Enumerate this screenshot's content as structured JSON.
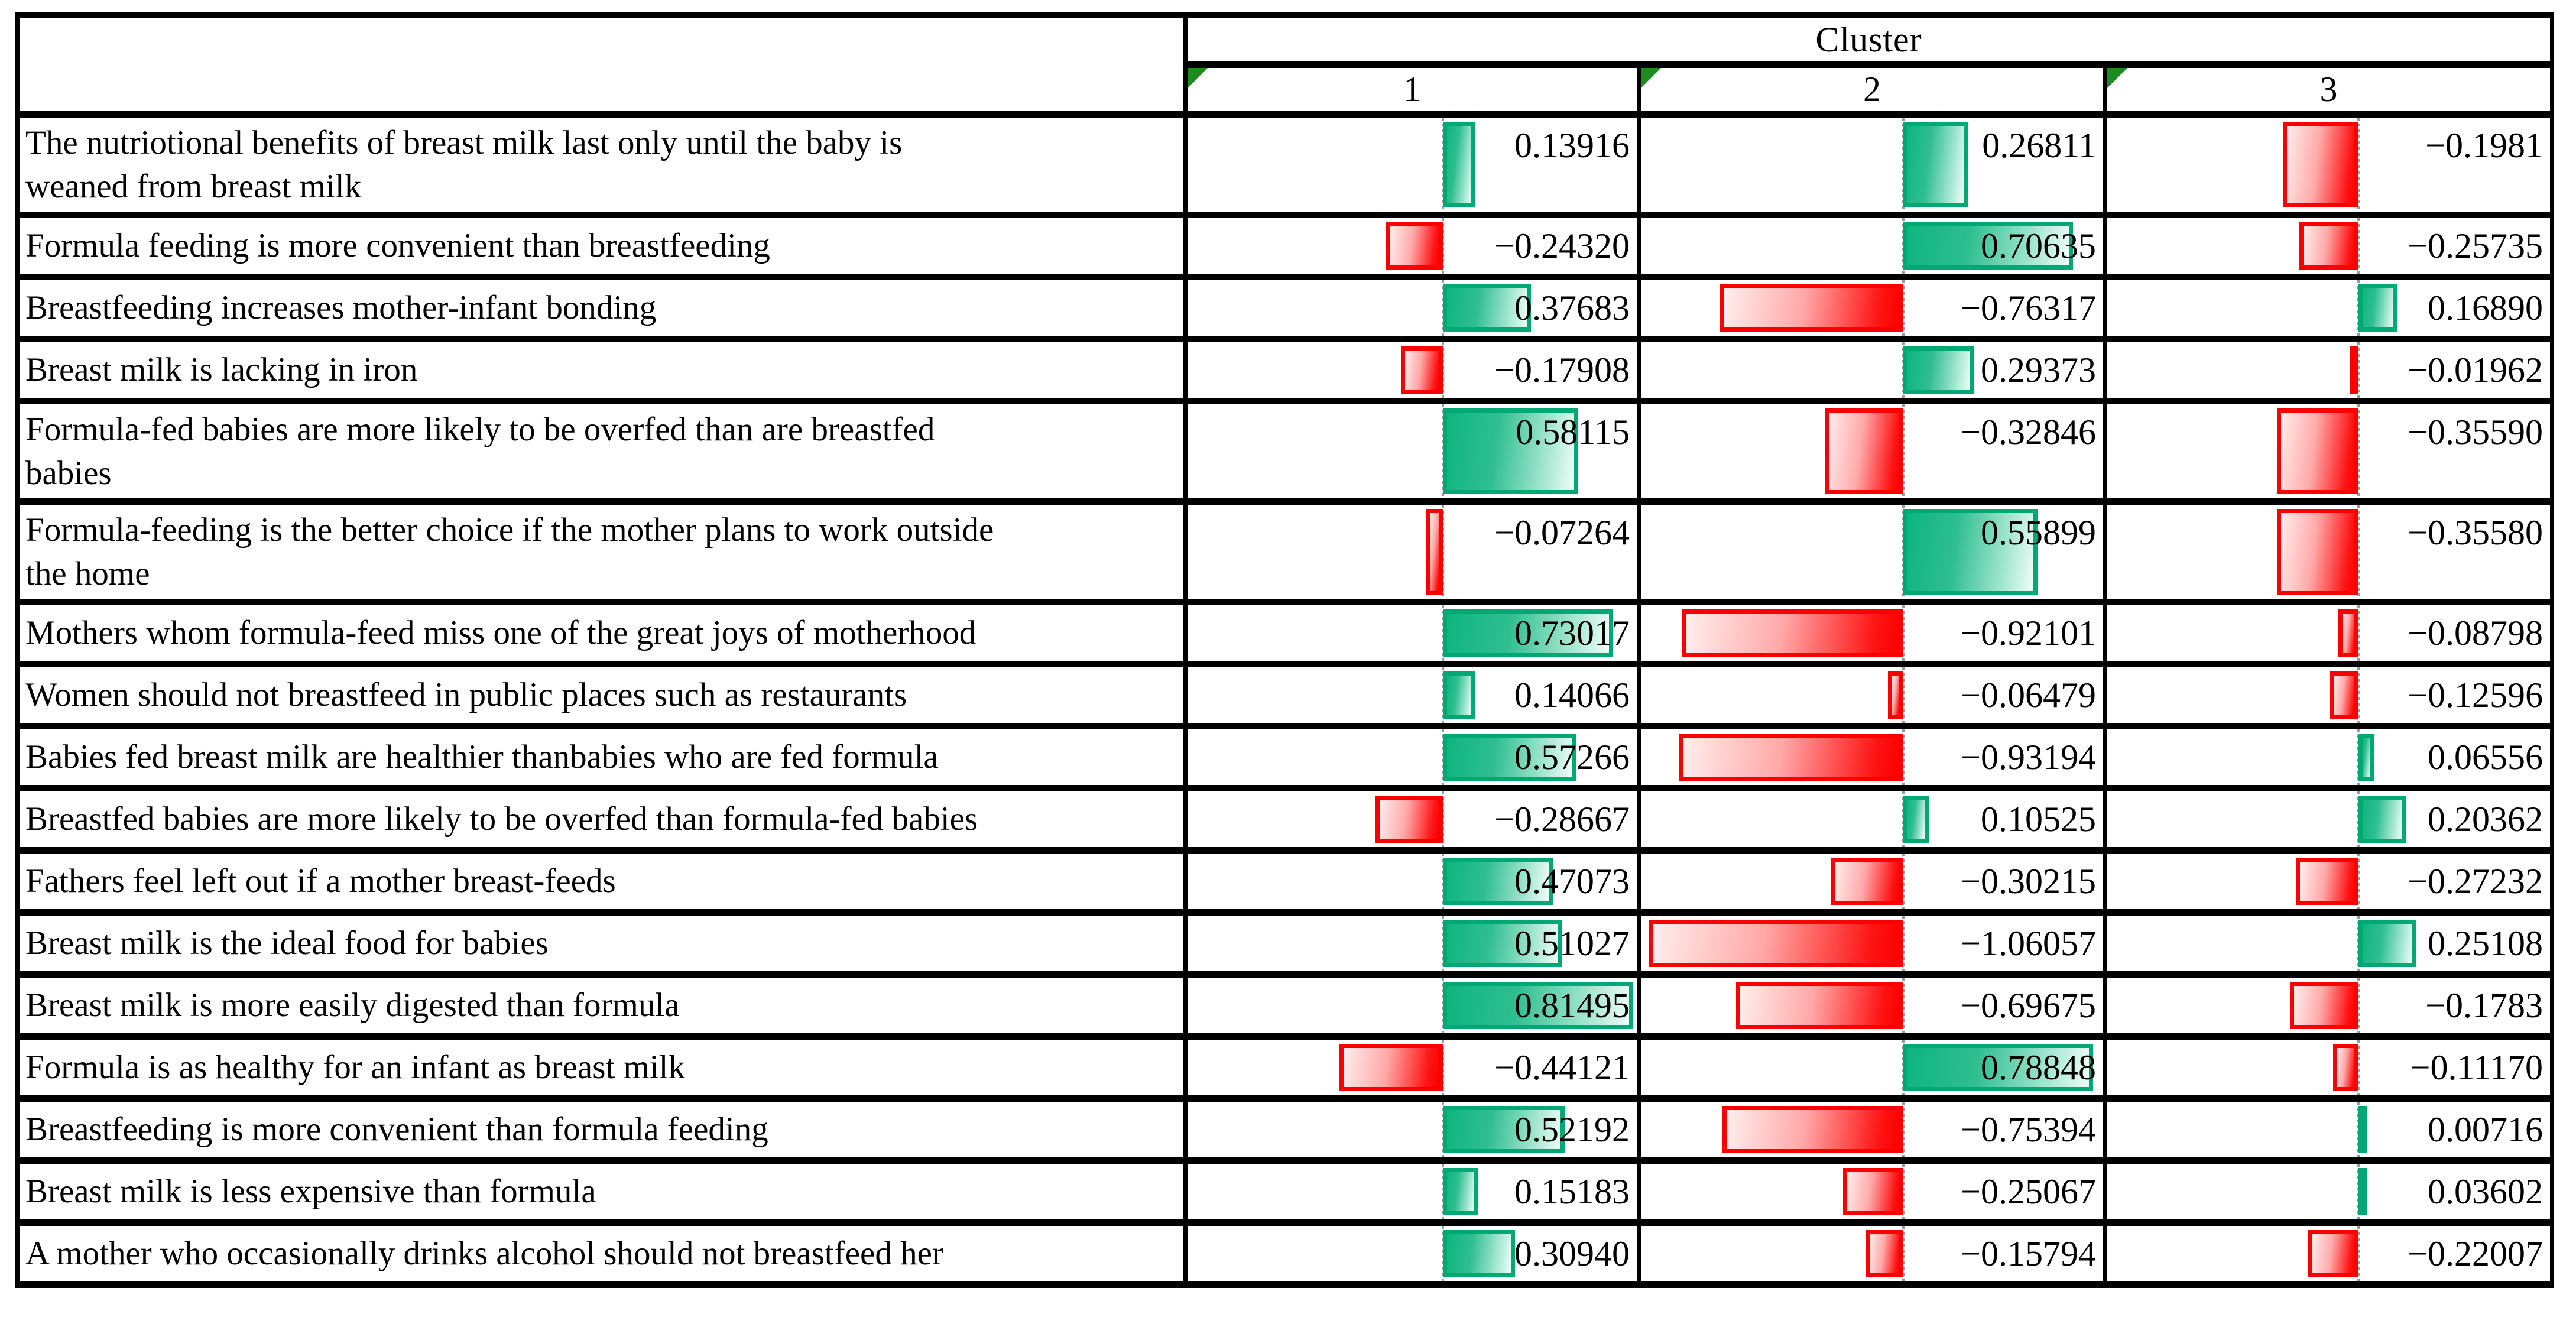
{
  "header": {
    "title": "Cluster",
    "columns": [
      "1",
      "2",
      "3"
    ]
  },
  "style": {
    "positive_color": "#0eb57f",
    "positive_border": "#00a873",
    "negative_color": "#fb0000",
    "negative_border": "#fb0000",
    "axis_line_color": "#9b9b9b",
    "corner_triangle_color": "#1e8b1e",
    "axis_percent": 56.8,
    "scale_percent_per_unit": 52
  },
  "chart_data": {
    "type": "table",
    "title": "Cluster",
    "columns": [
      "1",
      "2",
      "3"
    ],
    "legend": "green bars = positive cluster-center values, red bars = negative values, dotted line = zero axis",
    "rows": [
      {
        "statement_lines": [
          "The nutriotional benefits of breast milk last only until the baby is",
          "weaned from breast milk"
        ],
        "cells": [
          {
            "text": "0.13916",
            "value": 0.13916
          },
          {
            "text": "0.26811",
            "value": 0.26811
          },
          {
            "text": "−0.1981",
            "value": -0.1981,
            "bar": -0.33
          }
        ]
      },
      {
        "statement_lines": [
          "Formula feeding is more convenient than breastfeeding"
        ],
        "cells": [
          {
            "text": "−0.24320",
            "value": -0.2432
          },
          {
            "text": "0.70635",
            "value": 0.70635
          },
          {
            "text": "−0.25735",
            "value": -0.25735
          }
        ]
      },
      {
        "statement_lines": [
          "Breastfeeding increases mother-infant bonding"
        ],
        "cells": [
          {
            "text": "0.37683",
            "value": 0.37683
          },
          {
            "text": "−0.76317",
            "value": -0.76317
          },
          {
            "text": "0.16890",
            "value": 0.1689
          }
        ]
      },
      {
        "statement_lines": [
          "Breast milk is lacking in iron"
        ],
        "cells": [
          {
            "text": "−0.17908",
            "value": -0.17908
          },
          {
            "text": "0.29373",
            "value": 0.29373
          },
          {
            "text": "−0.01962",
            "value": -0.01962
          }
        ]
      },
      {
        "statement_lines": [
          "Formula-fed babies are more likely to be overfed than are breastfed",
          "babies"
        ],
        "cells": [
          {
            "text": "0.58115",
            "value": 0.58115
          },
          {
            "text": "−0.32846",
            "value": -0.32846
          },
          {
            "text": "−0.35590",
            "value": -0.3559
          }
        ]
      },
      {
        "statement_lines": [
          "Formula-feeding is the better choice if the mother plans to work outside",
          "the home"
        ],
        "cells": [
          {
            "text": "−0.07264",
            "value": -0.07264
          },
          {
            "text": "0.55899",
            "value": 0.55899
          },
          {
            "text": "−0.35580",
            "value": -0.3558
          }
        ]
      },
      {
        "statement_lines": [
          "Mothers whom formula-feed miss one of the great joys of motherhood"
        ],
        "cells": [
          {
            "text": "0.73017",
            "value": 0.73017
          },
          {
            "text": "−0.92101",
            "value": -0.92101
          },
          {
            "text": "−0.08798",
            "value": -0.08798
          }
        ]
      },
      {
        "statement_lines": [
          "Women should not breastfeed in public places such as restaurants"
        ],
        "cells": [
          {
            "text": "0.14066",
            "value": 0.14066
          },
          {
            "text": "−0.06479",
            "value": -0.06479
          },
          {
            "text": "−0.12596",
            "value": -0.12596
          }
        ]
      },
      {
        "statement_lines": [
          "Babies fed breast milk are healthier thanbabies who are fed formula"
        ],
        "cells": [
          {
            "text": "0.57266",
            "value": 0.57266
          },
          {
            "text": "−0.93194",
            "value": -0.93194
          },
          {
            "text": "0.06556",
            "value": 0.06556
          }
        ]
      },
      {
        "statement_lines": [
          "Breastfed babies are more likely to be overfed than formula-fed babies"
        ],
        "cells": [
          {
            "text": "−0.28667",
            "value": -0.28667
          },
          {
            "text": "0.10525",
            "value": 0.10525
          },
          {
            "text": "0.20362",
            "value": 0.20362
          }
        ]
      },
      {
        "statement_lines": [
          "Fathers feel left out if a mother breast-feeds"
        ],
        "cells": [
          {
            "text": "0.47073",
            "value": 0.47073
          },
          {
            "text": "−0.30215",
            "value": -0.30215
          },
          {
            "text": "−0.27232",
            "value": -0.27232
          }
        ]
      },
      {
        "statement_lines": [
          "Breast milk is the ideal food for babies"
        ],
        "cells": [
          {
            "text": "0.51027",
            "value": 0.51027
          },
          {
            "text": "−1.06057",
            "value": -1.06057
          },
          {
            "text": "0.25108",
            "value": 0.25108
          }
        ]
      },
      {
        "statement_lines": [
          "Breast milk is more easily digested than formula"
        ],
        "cells": [
          {
            "text": "0.81495",
            "value": 0.81495
          },
          {
            "text": "−0.69675",
            "value": -0.69675
          },
          {
            "text": "−0.1783",
            "value": -0.1783,
            "bar": -0.3
          }
        ]
      },
      {
        "statement_lines": [
          "Formula is as healthy for an infant as breast milk"
        ],
        "cells": [
          {
            "text": "−0.44121",
            "value": -0.44121
          },
          {
            "text": "0.78848",
            "value": 0.78848
          },
          {
            "text": "−0.11170",
            "value": -0.1117
          }
        ]
      },
      {
        "statement_lines": [
          "Breastfeeding is more convenient than formula feeding"
        ],
        "cells": [
          {
            "text": "0.52192",
            "value": 0.52192
          },
          {
            "text": "−0.75394",
            "value": -0.75394
          },
          {
            "text": "0.00716",
            "value": 0.00716
          }
        ]
      },
      {
        "statement_lines": [
          "Breast milk is less expensive than formula"
        ],
        "cells": [
          {
            "text": "0.15183",
            "value": 0.15183
          },
          {
            "text": "−0.25067",
            "value": -0.25067
          },
          {
            "text": "0.03602",
            "value": 0.03602
          }
        ]
      },
      {
        "statement_lines": [
          "A mother who occasionally drinks alcohol should not breastfeed her"
        ],
        "cells": [
          {
            "text": "0.30940",
            "value": 0.3094
          },
          {
            "text": "−0.15794",
            "value": -0.15794
          },
          {
            "text": "−0.22007",
            "value": -0.22007
          }
        ]
      }
    ]
  }
}
